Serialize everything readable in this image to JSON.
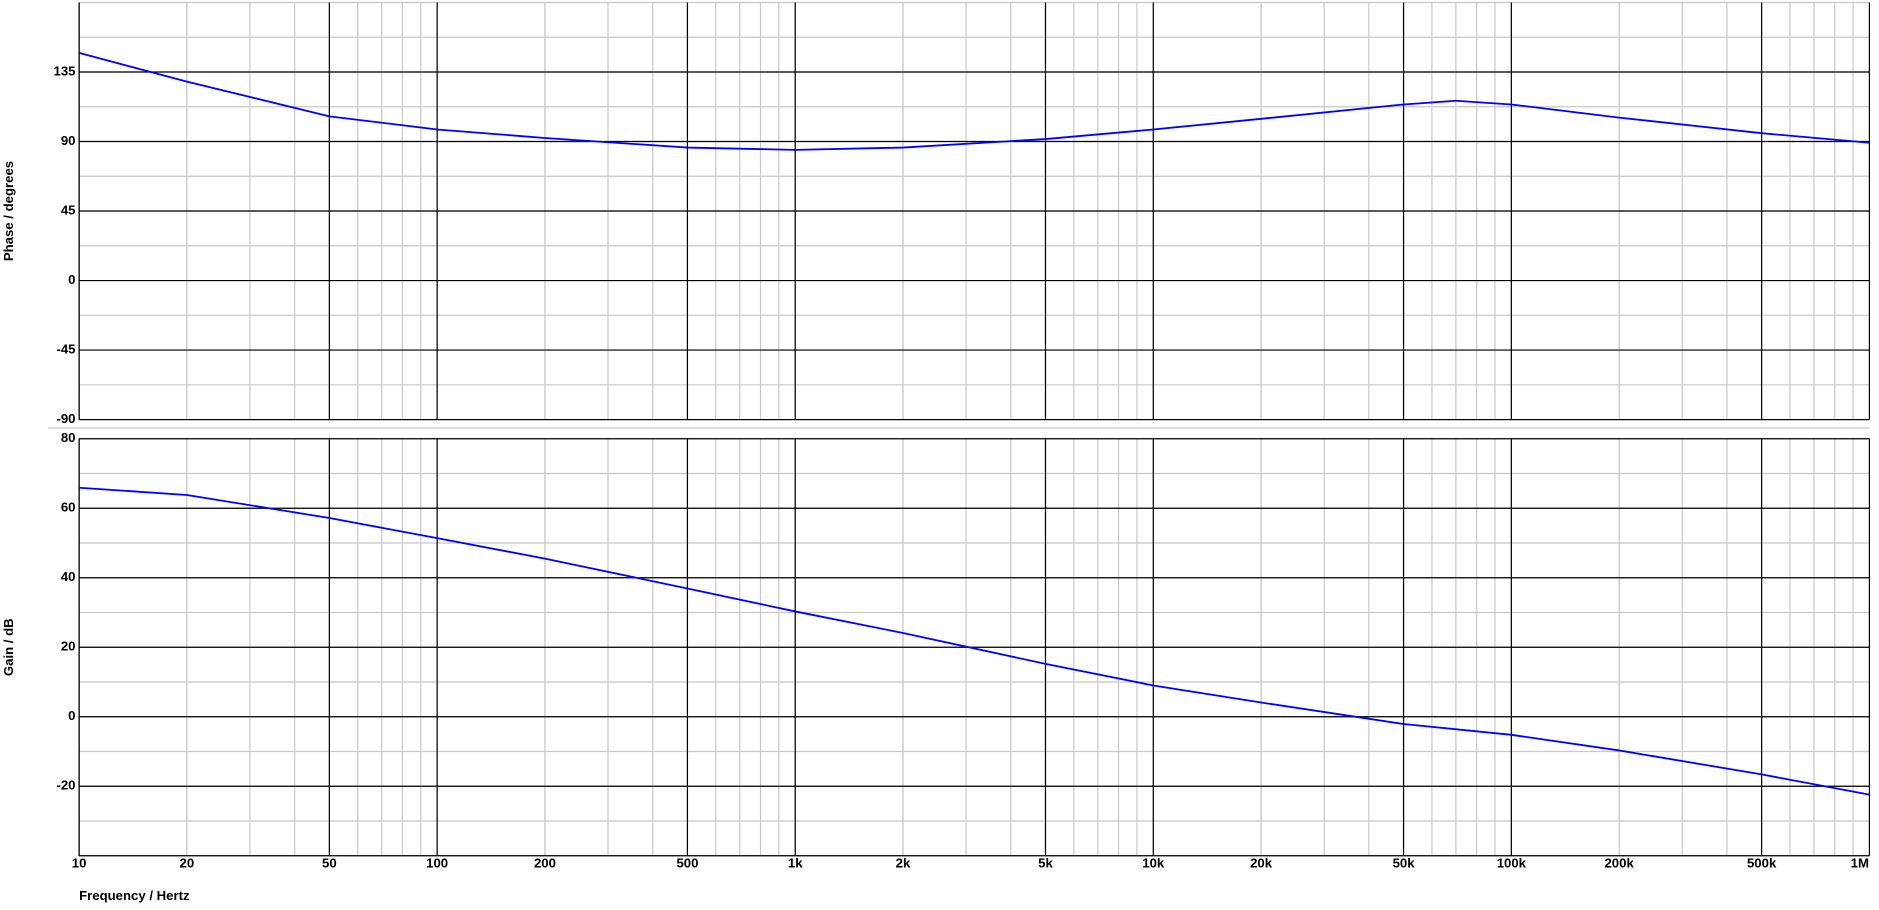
{
  "chart_data": [
    {
      "type": "line",
      "ylabel": "Phase / degrees",
      "xscale": "log",
      "grid": true,
      "x": [
        10,
        20,
        50,
        100,
        200,
        500,
        1000,
        2000,
        5000,
        10000,
        20000,
        50000,
        70000,
        100000,
        200000,
        500000,
        1000000
      ],
      "series": [
        {
          "color": "#0000ff",
          "values": [
            147.4,
            128.8,
            106.3,
            97.8,
            92.3,
            86.1,
            84.6,
            86.1,
            91.6,
            97.8,
            104.7,
            114,
            116.4,
            114,
            105.5,
            95.4,
            89.2
          ]
        }
      ],
      "xlim": [
        10,
        1000000
      ],
      "ylim": [
        -90,
        180
      ],
      "yticks": [
        -90,
        -45,
        0,
        45,
        90,
        135
      ]
    },
    {
      "type": "line",
      "ylabel": "Gain / dB",
      "xlabel": "Frequency / Hertz",
      "xscale": "log",
      "grid": true,
      "x": [
        10,
        20,
        50,
        100,
        200,
        500,
        1000,
        2000,
        5000,
        10000,
        20000,
        50000,
        100000,
        200000,
        500000,
        1000000
      ],
      "series": [
        {
          "color": "#0000ff",
          "values": [
            65.9,
            63.8,
            57.2,
            51.4,
            45.5,
            36.9,
            30.3,
            24.1,
            15.2,
            9.0,
            4.1,
            -2.1,
            -5.2,
            -9.7,
            -16.6,
            -22.4
          ]
        }
      ],
      "xlim": [
        10,
        1000000
      ],
      "ylim": [
        -40,
        80
      ],
      "yticks": [
        -20,
        0,
        20,
        40,
        60,
        80
      ],
      "xticks": [
        10,
        20,
        50,
        100,
        200,
        500,
        {
          "value": 1000,
          "label": "1k"
        },
        {
          "value": 2000,
          "label": "2k"
        },
        {
          "value": 5000,
          "label": "5k"
        },
        {
          "value": 10000,
          "label": "10k"
        },
        {
          "value": 20000,
          "label": "20k"
        },
        {
          "value": 50000,
          "label": "50k"
        },
        {
          "value": 100000,
          "label": "100k"
        },
        {
          "value": 200000,
          "label": "200k"
        },
        {
          "value": 500000,
          "label": "500k"
        },
        {
          "value": 1000000,
          "label": "1M"
        }
      ]
    }
  ]
}
